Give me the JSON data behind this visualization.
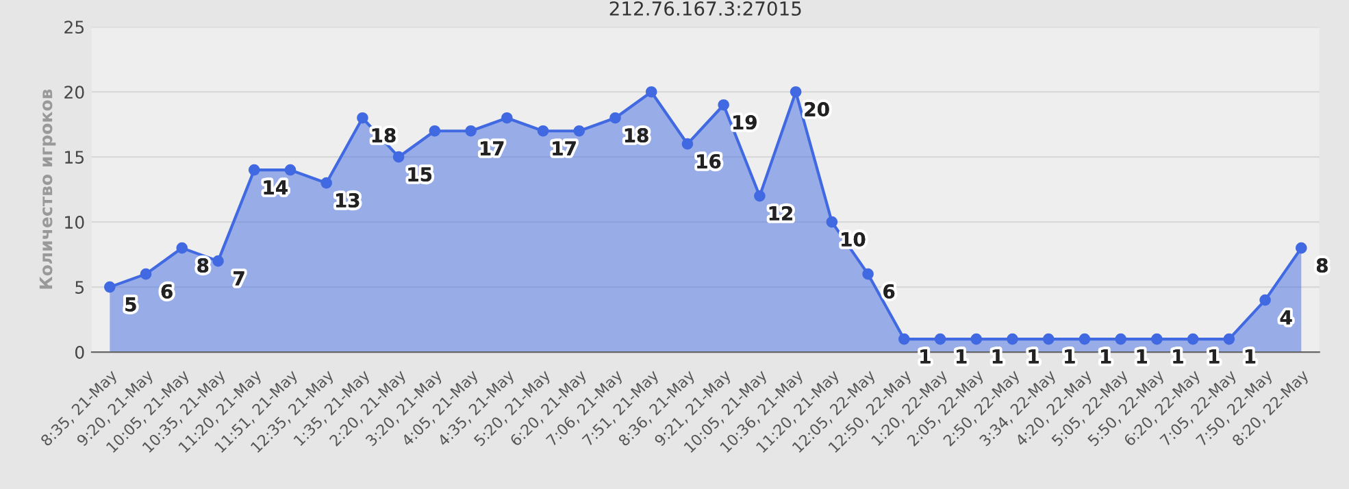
{
  "chart_data": {
    "type": "area",
    "title": "212.76.167.3:27015",
    "ylabel": "Количество игроков",
    "categories": [
      "8:35, 21-May",
      "9:20, 21-May",
      "10:05, 21-May",
      "10:35, 21-May",
      "11:20, 21-May",
      "11:51, 21-May",
      "12:35, 21-May",
      "1:35, 21-May",
      "2:20, 21-May",
      "3:20, 21-May",
      "4:05, 21-May",
      "4:35, 21-May",
      "5:20, 21-May",
      "6:20, 21-May",
      "7:06, 21-May",
      "7:51, 21-May",
      "8:36, 21-May",
      "9:21, 21-May",
      "10:05, 21-May",
      "10:36, 21-May",
      "11:20, 21-May",
      "12:05, 22-May",
      "12:50, 22-May",
      "1:20, 22-May",
      "2:05, 22-May",
      "2:50, 22-May",
      "3:34, 22-May",
      "4:20, 22-May",
      "5:05, 22-May",
      "5:50, 22-May",
      "6:20, 22-May",
      "7:05, 22-May",
      "7:50, 22-May",
      "8:20, 22-May"
    ],
    "series": [
      {
        "color": "#4169e1",
        "values": [
          5,
          6,
          8,
          7,
          14,
          14,
          13,
          18,
          15,
          17,
          17,
          18,
          17,
          17,
          18,
          20,
          16,
          19,
          12,
          20,
          10,
          6,
          1,
          1,
          1,
          1,
          1,
          1,
          1,
          1,
          1,
          1,
          4,
          8
        ],
        "value_labels": [
          "5",
          "6",
          "8",
          "7",
          "14",
          null,
          "13",
          "18",
          "15",
          null,
          "17",
          null,
          "17",
          null,
          "18",
          null,
          "16",
          "19",
          "12",
          "20",
          "10",
          "6",
          "1",
          "1",
          "1",
          "1",
          "1",
          "1",
          "1",
          "1",
          "1",
          "1",
          "4",
          "8"
        ]
      }
    ],
    "ylim": [
      0,
      25
    ],
    "yticks": [
      0,
      5,
      10,
      15,
      20,
      25
    ],
    "grid": "y",
    "marker": "circle",
    "legend": false
  }
}
